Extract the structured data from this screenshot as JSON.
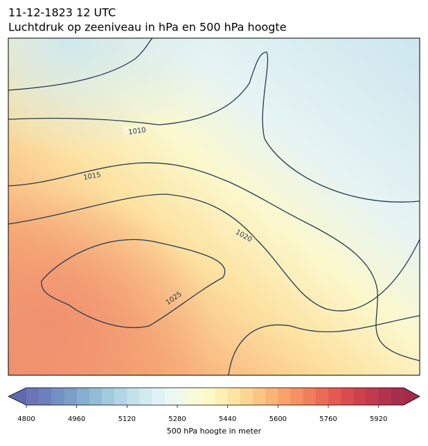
{
  "title": "11-12-1823 12 UTC",
  "subtitle": "Luchtdruk op zeeniveau in hPa en 500 hPa hoogte",
  "contour_labels": [
    1010,
    1015,
    1020,
    1025
  ],
  "colorbar": {
    "label": "500 hPa hoogte in meter",
    "lim": [
      4800,
      6000
    ],
    "step": 40,
    "ticks": [
      4800,
      4960,
      5120,
      5280,
      5440,
      5600,
      5760,
      5920
    ],
    "colors": [
      "#6b75b6",
      "#6e80bb",
      "#7490c2",
      "#7c9ec8",
      "#86aece",
      "#93bcd6",
      "#a3c9de",
      "#b3d6e6",
      "#c3e2ec",
      "#d2ebf1",
      "#e0f2f5",
      "#ebf7f3",
      "#f3f9e6",
      "#f9fbd6",
      "#fdf9c7",
      "#fef0b5",
      "#fde4a3",
      "#fcd592",
      "#fbc584",
      "#f9b477",
      "#f7a26b",
      "#f49062",
      "#f07e5b",
      "#ea6b56",
      "#e35a52",
      "#d94c50",
      "#cd414f",
      "#c0394e",
      "#b3324d",
      "#a72e4c"
    ],
    "under_color": "#6069ad",
    "over_color": "#a22a49"
  }
}
